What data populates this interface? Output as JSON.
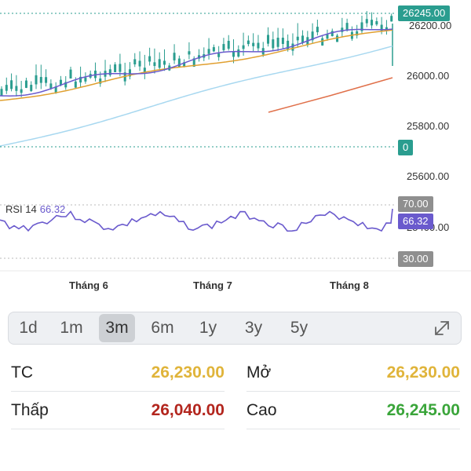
{
  "price_axis": {
    "labels": [
      "26200.00",
      "26000.00",
      "25800.00",
      "25600.00",
      "25400.00"
    ]
  },
  "tags": {
    "current_price": "26245.00",
    "zero_tag": "0",
    "rsi_upper": "70.00",
    "rsi_value": "66.32",
    "rsi_lower": "30.00"
  },
  "rsi": {
    "label": "RSI 14",
    "value": "66.32"
  },
  "months": [
    "Tháng 6",
    "Tháng 7",
    "Tháng 8"
  ],
  "range_tabs": [
    {
      "label": "1d",
      "active": false
    },
    {
      "label": "1m",
      "active": false
    },
    {
      "label": "3m",
      "active": true
    },
    {
      "label": "6m",
      "active": false
    },
    {
      "label": "1y",
      "active": false
    },
    {
      "label": "3y",
      "active": false
    },
    {
      "label": "5y",
      "active": false
    }
  ],
  "icons": {
    "expand": "expand-icon"
  },
  "stats": {
    "tc": {
      "label": "TC",
      "value": "26,230.00",
      "color": "#e0b43a"
    },
    "open": {
      "label": "Mở",
      "value": "26,230.00",
      "color": "#e0b43a"
    },
    "low": {
      "label": "Thấp",
      "value": "26,040.00",
      "color": "#b3261e"
    },
    "high": {
      "label": "Cao",
      "value": "26,245.00",
      "color": "#3aa53a"
    }
  },
  "colors": {
    "price_tag": "#2a9d8f",
    "zero_tag": "#2a9d8f",
    "rsi_band_tag": "#8f8f8f",
    "rsi_tag": "#6a5acd",
    "candle": "#2a9d8f",
    "ma_short": "#6a5acd",
    "ma_mid": "#e0a030",
    "ma_long": "#a8d8f0",
    "orange_line": "#e0704a"
  }
}
